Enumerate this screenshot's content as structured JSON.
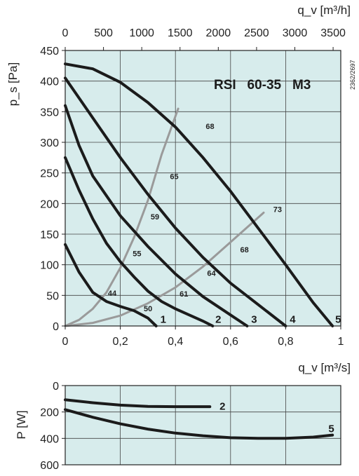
{
  "chart_data": [
    {
      "type": "line",
      "title": "RSI   60-35   M3",
      "code": "2362/2697",
      "xlabel": "q_v [m³/s]",
      "x2label": "q_v [m³/h]",
      "ylabel": "p_s [Pa]",
      "xlim": [
        0,
        1.0
      ],
      "ylim": [
        0,
        450
      ],
      "x_ticks": [
        "0",
        "0,2",
        "0,4",
        "0,6",
        "0,8",
        "1"
      ],
      "x_tick_values": [
        0,
        0.2,
        0.4,
        0.6,
        0.8,
        1.0
      ],
      "x2_ticks": [
        "0",
        "500",
        "1000",
        "1500",
        "2000",
        "2500",
        "3000",
        "3500"
      ],
      "x2_tick_values": [
        0,
        500,
        1000,
        1500,
        2000,
        2500,
        3000,
        3500
      ],
      "y_ticks": [
        "0",
        "50",
        "100",
        "150",
        "200",
        "250",
        "300",
        "350",
        "400",
        "450"
      ],
      "y_tick_values": [
        0,
        50,
        100,
        150,
        200,
        250,
        300,
        350,
        400,
        450
      ],
      "grid": true,
      "series": [
        {
          "name": "1",
          "points": [
            [
              0,
              133
            ],
            [
              0.05,
              88
            ],
            [
              0.1,
              55
            ],
            [
              0.15,
              40
            ],
            [
              0.2,
              32
            ],
            [
              0.25,
              25
            ],
            [
              0.3,
              13
            ],
            [
              0.33,
              0
            ]
          ]
        },
        {
          "name": "2",
          "points": [
            [
              0,
              275
            ],
            [
              0.05,
              222
            ],
            [
              0.1,
              175
            ],
            [
              0.15,
              135
            ],
            [
              0.2,
              105
            ],
            [
              0.25,
              80
            ],
            [
              0.3,
              57
            ],
            [
              0.35,
              40
            ],
            [
              0.4,
              28
            ],
            [
              0.45,
              18
            ],
            [
              0.5,
              8
            ],
            [
              0.535,
              0
            ]
          ]
        },
        {
          "name": "3",
          "points": [
            [
              0,
              360
            ],
            [
              0.05,
              295
            ],
            [
              0.1,
              245
            ],
            [
              0.2,
              180
            ],
            [
              0.3,
              130
            ],
            [
              0.4,
              85
            ],
            [
              0.5,
              48
            ],
            [
              0.6,
              18
            ],
            [
              0.66,
              0
            ]
          ]
        },
        {
          "name": "4",
          "points": [
            [
              0,
              405
            ],
            [
              0.1,
              340
            ],
            [
              0.2,
              275
            ],
            [
              0.3,
              215
            ],
            [
              0.4,
              160
            ],
            [
              0.5,
              112
            ],
            [
              0.6,
              70
            ],
            [
              0.7,
              35
            ],
            [
              0.8,
              0
            ]
          ]
        },
        {
          "name": "5",
          "points": [
            [
              0,
              428
            ],
            [
              0.1,
              420
            ],
            [
              0.2,
              398
            ],
            [
              0.3,
              365
            ],
            [
              0.4,
              325
            ],
            [
              0.5,
              275
            ],
            [
              0.6,
              220
            ],
            [
              0.7,
              160
            ],
            [
              0.8,
              100
            ],
            [
              0.9,
              38
            ],
            [
              0.97,
              0
            ]
          ]
        }
      ],
      "efficiency_lines": [
        {
          "points": [
            [
              0,
              0
            ],
            [
              0.05,
              10
            ],
            [
              0.1,
              28
            ],
            [
              0.15,
              55
            ],
            [
              0.2,
              95
            ],
            [
              0.25,
              145
            ],
            [
              0.3,
              205
            ],
            [
              0.35,
              280
            ],
            [
              0.41,
              355
            ]
          ]
        },
        {
          "points": [
            [
              0,
              0
            ],
            [
              0.1,
              5
            ],
            [
              0.2,
              17
            ],
            [
              0.3,
              37
            ],
            [
              0.4,
              63
            ],
            [
              0.5,
              97
            ],
            [
              0.6,
              137
            ],
            [
              0.72,
              185
            ]
          ]
        }
      ],
      "efficiency_labels": [
        {
          "text": "68",
          "x": 0.51,
          "y": 322
        },
        {
          "text": "65",
          "x": 0.38,
          "y": 240
        },
        {
          "text": "59",
          "x": 0.31,
          "y": 174
        },
        {
          "text": "55",
          "x": 0.245,
          "y": 114
        },
        {
          "text": "44",
          "x": 0.155,
          "y": 49
        },
        {
          "text": "50",
          "x": 0.285,
          "y": 24
        },
        {
          "text": "73",
          "x": 0.755,
          "y": 186
        },
        {
          "text": "68",
          "x": 0.635,
          "y": 120
        },
        {
          "text": "64",
          "x": 0.515,
          "y": 82
        },
        {
          "text": "61",
          "x": 0.415,
          "y": 48
        }
      ],
      "curve_labels": [
        {
          "text": "1",
          "x": 0.345,
          "y": 12
        },
        {
          "text": "2",
          "x": 0.545,
          "y": 12
        },
        {
          "text": "3",
          "x": 0.675,
          "y": 12
        },
        {
          "text": "4",
          "x": 0.815,
          "y": 12
        },
        {
          "text": "5",
          "x": 0.98,
          "y": 12
        }
      ]
    },
    {
      "type": "line",
      "xlabel": "",
      "ylabel": "P [W]",
      "xlim": [
        0,
        1.0
      ],
      "ylim": [
        600,
        0
      ],
      "y_ticks": [
        "0",
        "200",
        "400",
        "600"
      ],
      "y_tick_values": [
        0,
        200,
        400,
        600
      ],
      "grid": true,
      "series": [
        {
          "name": "2",
          "points": [
            [
              0,
              108
            ],
            [
              0.1,
              130
            ],
            [
              0.2,
              148
            ],
            [
              0.3,
              158
            ],
            [
              0.4,
              160
            ],
            [
              0.5,
              160
            ],
            [
              0.525,
              160
            ]
          ]
        },
        {
          "name": "5",
          "points": [
            [
              0,
              182
            ],
            [
              0.1,
              240
            ],
            [
              0.2,
              290
            ],
            [
              0.3,
              330
            ],
            [
              0.4,
              360
            ],
            [
              0.5,
              380
            ],
            [
              0.6,
              395
            ],
            [
              0.7,
              400
            ],
            [
              0.8,
              400
            ],
            [
              0.9,
              390
            ],
            [
              0.97,
              375
            ]
          ]
        }
      ],
      "curve_labels": [
        {
          "text": "2",
          "x": 0.56,
          "y": 150
        },
        {
          "text": "5",
          "x": 0.955,
          "y": 320
        }
      ]
    }
  ]
}
